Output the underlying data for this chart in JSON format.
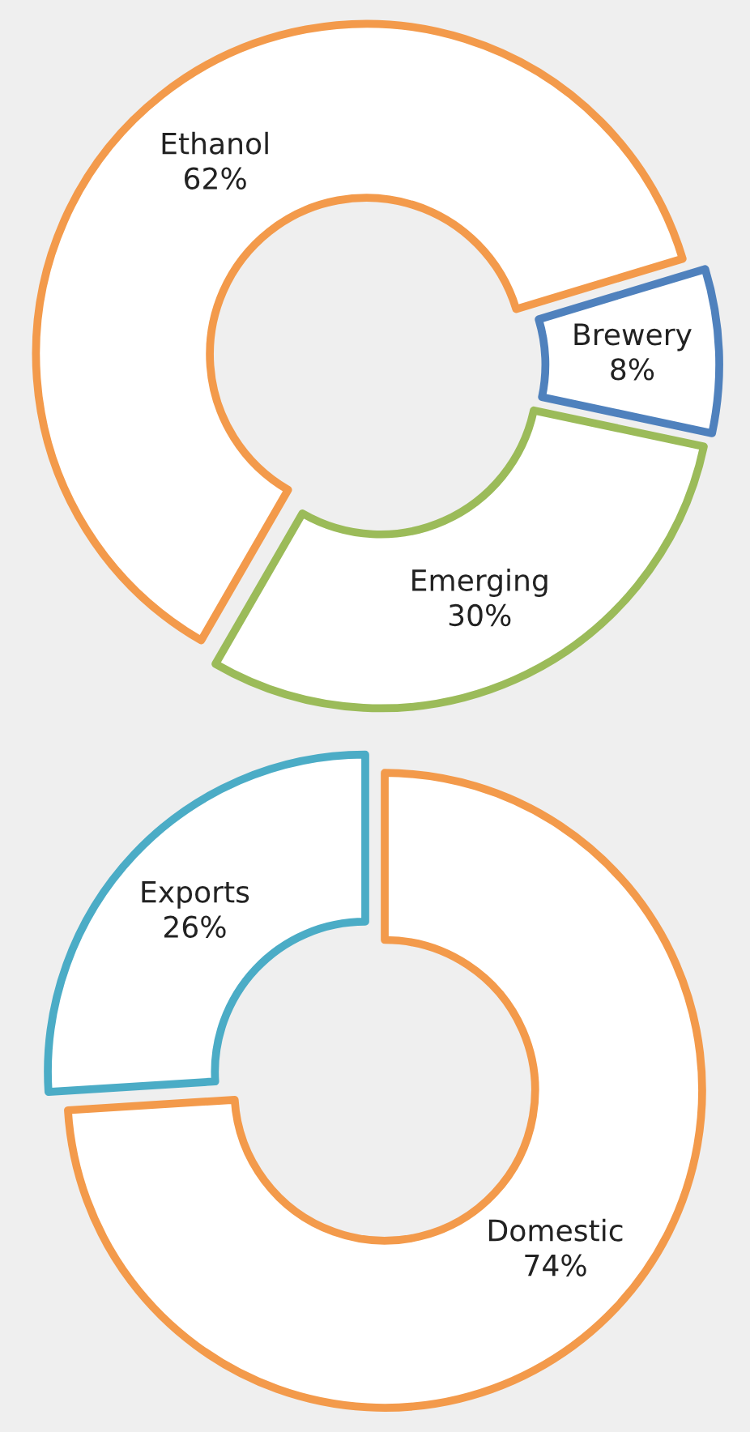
{
  "chart_data": [
    {
      "type": "donut",
      "categories": [
        "Ethanol",
        "Brewery",
        "Emerging"
      ],
      "values": [
        62,
        8,
        30
      ],
      "value_labels": [
        "62%",
        "8%",
        "30%"
      ],
      "colors": [
        "#f39a4b",
        "#4f81bd",
        "#9bbb59"
      ],
      "legend": false
    },
    {
      "type": "donut",
      "categories": [
        "Exports",
        "Domestic"
      ],
      "values": [
        26,
        74
      ],
      "value_labels": [
        "26%",
        "74%"
      ],
      "colors": [
        "#4bacc6",
        "#f39a4b"
      ],
      "legend": false
    }
  ]
}
